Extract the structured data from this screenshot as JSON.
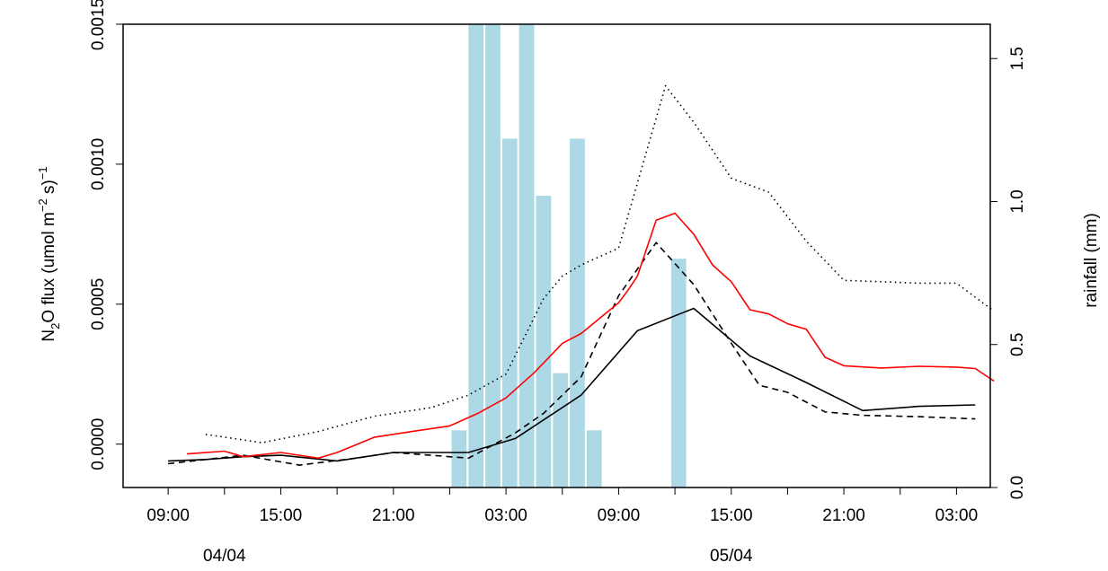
{
  "chart_data": {
    "type": "line",
    "xlabel": "",
    "ylabel_left_parts": {
      "pre": "N",
      "sub1": "2",
      "mid": "O flux (umol m",
      "sup1": "−2",
      "mid2": " s)",
      "sup2": "−1"
    },
    "ylabel_right": "rainfall (mm)",
    "x_hours_ticks": [
      {
        "h": 9,
        "label": "09:00"
      },
      {
        "h": 15,
        "label": "15:00"
      },
      {
        "h": 21,
        "label": "21:00"
      },
      {
        "h": 27,
        "label": "03:00"
      },
      {
        "h": 33,
        "label": "09:00"
      },
      {
        "h": 39,
        "label": "15:00"
      },
      {
        "h": 45,
        "label": "21:00"
      },
      {
        "h": 51,
        "label": "03:00"
      }
    ],
    "x_minor_ticks": [
      12,
      18,
      24,
      30,
      36,
      42,
      48
    ],
    "date_labels": [
      {
        "h": 12,
        "label": "04/04"
      },
      {
        "h": 39,
        "label": "05/04"
      }
    ],
    "xlim": [
      6.6,
      52.8
    ],
    "ylim_left": [
      -0.000155,
      0.0015
    ],
    "yticks_left": [
      {
        "v": 0.0,
        "label": "0.0000"
      },
      {
        "v": 0.0005,
        "label": "0.0005"
      },
      {
        "v": 0.001,
        "label": "0.0010"
      },
      {
        "v": 0.0015,
        "label": "0.0015"
      }
    ],
    "ylim_right": [
      0,
      1.62
    ],
    "yticks_right": [
      {
        "v": 0.0,
        "label": "0.0"
      },
      {
        "v": 0.5,
        "label": "0.5"
      },
      {
        "v": 1.0,
        "label": "1.0"
      },
      {
        "v": 1.5,
        "label": "1.5"
      }
    ],
    "rainfall_bars": {
      "color": "#ADD8E6",
      "centers": [
        24.5,
        25.4,
        26.3,
        27.2,
        28.1,
        29.0,
        29.9,
        30.8,
        31.7,
        36.2
      ],
      "values": [
        0.2,
        1.62,
        1.62,
        1.22,
        1.62,
        1.02,
        0.4,
        1.22,
        0.2,
        0.8
      ]
    },
    "series": [
      {
        "color": "#000000",
        "dash": "solid",
        "points": [
          [
            9,
            -6e-05
          ],
          [
            11,
            -5.5e-05
          ],
          [
            13,
            -4.5e-05
          ],
          [
            15,
            -4e-05
          ],
          [
            18,
            -6e-05
          ],
          [
            21,
            -3e-05
          ],
          [
            25,
            -3e-05
          ],
          [
            27.5,
            2e-05
          ],
          [
            31,
            0.000175
          ],
          [
            34,
            0.000405
          ],
          [
            37,
            0.000485
          ],
          [
            40,
            0.000315
          ],
          [
            43,
            0.00022
          ],
          [
            46,
            0.00012
          ],
          [
            49,
            0.000135
          ],
          [
            52,
            0.00014
          ]
        ]
      },
      {
        "color": "#000000",
        "dash": "dashed",
        "points": [
          [
            9,
            -7e-05
          ],
          [
            13,
            -4e-05
          ],
          [
            16,
            -7.5e-05
          ],
          [
            19,
            -5e-05
          ],
          [
            21,
            -3e-05
          ],
          [
            23,
            -4e-05
          ],
          [
            25,
            -5e-05
          ],
          [
            27.5,
            4e-05
          ],
          [
            29,
            0.00011
          ],
          [
            31,
            0.00024
          ],
          [
            33,
            0.00053
          ],
          [
            35,
            0.00072
          ],
          [
            37,
            0.00057
          ],
          [
            39,
            0.00036
          ],
          [
            40.5,
            0.00021
          ],
          [
            42,
            0.000185
          ],
          [
            44,
            0.000115
          ],
          [
            46,
            0.000103
          ],
          [
            49,
            9.8e-05
          ],
          [
            52,
            9e-05
          ]
        ]
      },
      {
        "color": "#000000",
        "dash": "dotted",
        "points": [
          [
            11,
            3.5e-05
          ],
          [
            14,
            5e-06
          ],
          [
            17,
            4.5e-05
          ],
          [
            20,
            0.0001
          ],
          [
            23,
            0.00013
          ],
          [
            25,
            0.000175
          ],
          [
            27,
            0.00025
          ],
          [
            29,
            0.00052
          ],
          [
            30,
            0.0006
          ],
          [
            31,
            0.00064
          ],
          [
            33,
            0.0007
          ],
          [
            35.5,
            0.00128
          ],
          [
            37,
            0.00115
          ],
          [
            39,
            0.00095
          ],
          [
            41,
            0.0009
          ],
          [
            43,
            0.000725
          ],
          [
            45,
            0.000585
          ],
          [
            47,
            0.00058
          ],
          [
            49,
            0.000575
          ],
          [
            51,
            0.000575
          ],
          [
            53,
            0.000475
          ]
        ]
      },
      {
        "color": "#FF0000",
        "dash": "solid",
        "points": [
          [
            10,
            -3.5e-05
          ],
          [
            12,
            -2.5e-05
          ],
          [
            13,
            -4.5e-05
          ],
          [
            15,
            -3e-05
          ],
          [
            17,
            -5e-05
          ],
          [
            18,
            -3e-05
          ],
          [
            20,
            2.5e-05
          ],
          [
            22,
            4.5e-05
          ],
          [
            24,
            6.5e-05
          ],
          [
            25.5,
            0.00011
          ],
          [
            27,
            0.000165
          ],
          [
            28.5,
            0.000255
          ],
          [
            29,
            0.00029
          ],
          [
            30,
            0.00036
          ],
          [
            31,
            0.000395
          ],
          [
            32,
            0.00045
          ],
          [
            33,
            0.000505
          ],
          [
            33.5,
            0.00055
          ],
          [
            34,
            0.0006
          ],
          [
            35,
            0.0008
          ],
          [
            36,
            0.000825
          ],
          [
            37,
            0.00075
          ],
          [
            38,
            0.00064
          ],
          [
            39,
            0.00058
          ],
          [
            40,
            0.00048
          ],
          [
            41,
            0.000465
          ],
          [
            42,
            0.00043
          ],
          [
            43,
            0.00041
          ],
          [
            44,
            0.00031
          ],
          [
            45,
            0.00028
          ],
          [
            47,
            0.000272
          ],
          [
            49,
            0.000278
          ],
          [
            51,
            0.000275
          ],
          [
            52,
            0.00027
          ],
          [
            53,
            0.000225
          ]
        ]
      }
    ]
  }
}
